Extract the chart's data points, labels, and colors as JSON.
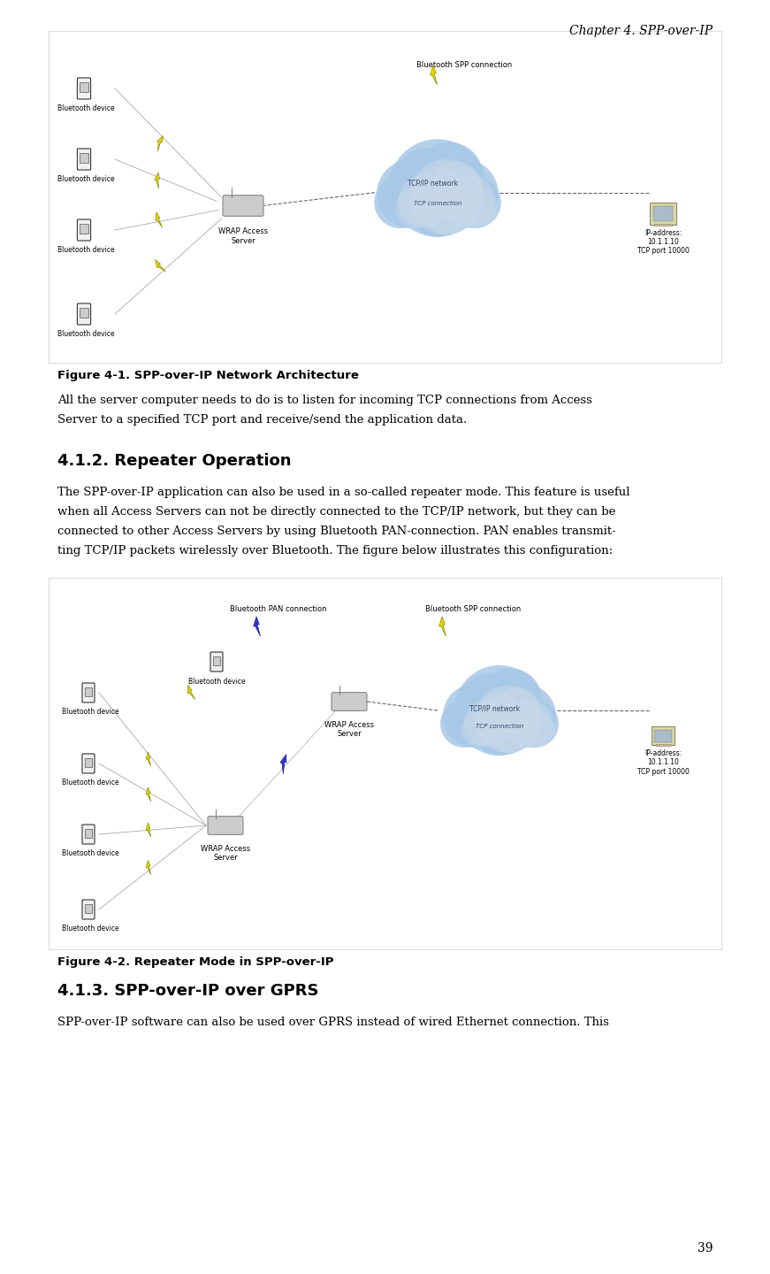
{
  "bg_color": "#ffffff",
  "page_width": 8.71,
  "page_height": 14.4,
  "dpi": 100,
  "header_text": "Chapter 4. SPP-over-IP",
  "header_font_size": 10,
  "figure1_caption": "Figure 4-1. SPP-over-IP Network Architecture",
  "figure1_caption_size": 9.5,
  "para1_line1": "All the server computer needs to do is to listen for incoming TCP connections from Access",
  "para1_line2": "Server to a specified TCP port and receive/send the application data.",
  "para1_size": 9.5,
  "section_title": "4.1.2. Repeater Operation",
  "section_title_size": 13,
  "para2_line1": "The SPP-over-IP application can also be used in a so-called repeater mode. This feature is useful",
  "para2_line2": "when all Access Servers can not be directly connected to the TCP/IP network, but they can be",
  "para2_line3": "connected to other Access Servers by using Bluetooth PAN-connection. PAN enables transmit-",
  "para2_line4": "ting TCP/IP packets wirelessly over Bluetooth. The figure below illustrates this configuration:",
  "para2_size": 9.5,
  "figure2_caption": "Figure 4-2. Repeater Mode in SPP-over-IP",
  "figure2_caption_size": 9.5,
  "section2_title": "4.1.3. SPP-over-IP over GPRS",
  "section2_title_size": 13,
  "para3": "SPP-over-IP software can also be used over GPRS instead of wired Ethernet connection. This",
  "para3_size": 9.5,
  "page_number": "39",
  "page_number_size": 10,
  "text_color": "#000000",
  "gray_text": "#555555",
  "blue_text": "#4444aa",
  "yellow_bolt": "#e8d800",
  "blue_bolt": "#3333cc",
  "cloud_blue": "#7ab0d4",
  "cloud_gray": "#bbbbbb"
}
